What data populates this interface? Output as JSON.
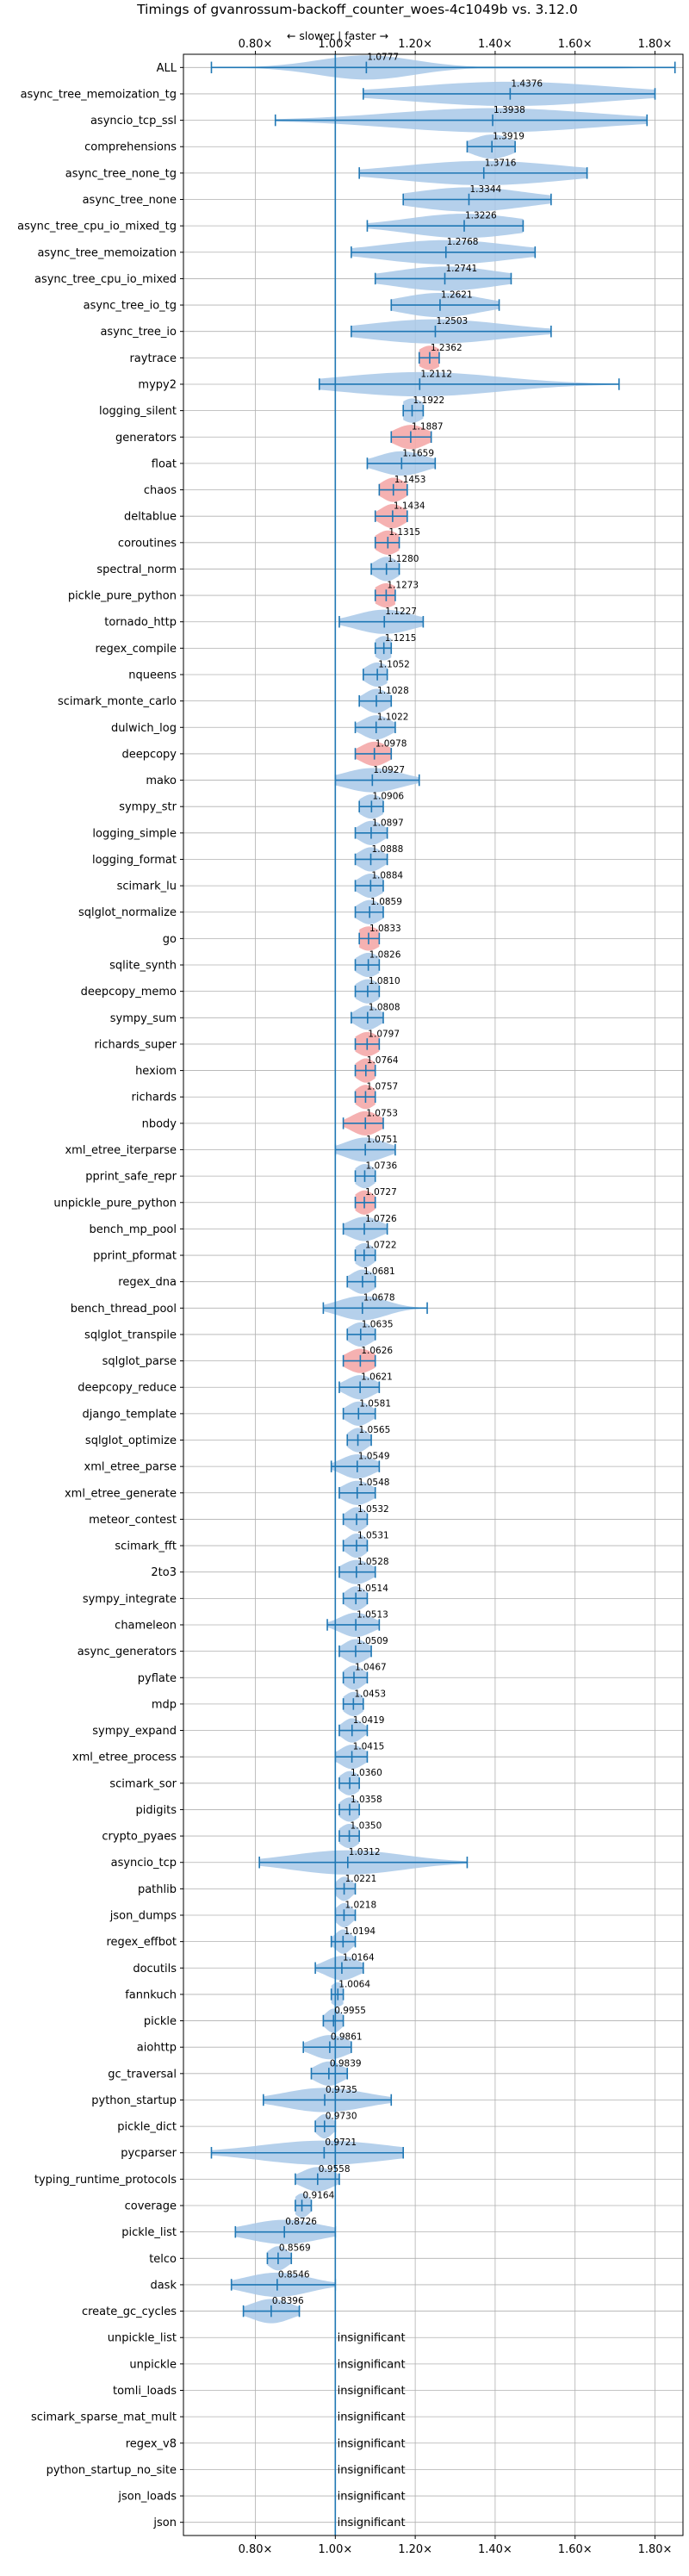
{
  "chart_data": {
    "type": "violin",
    "title": "Timings of gvanrossum-backoff_counter_woes-4c1049b vs. 3.12.0",
    "direction_label": "← slower | faster →",
    "xlim": [
      0.62,
      1.87
    ],
    "xticks": [
      0.8,
      1.0,
      1.2,
      1.4,
      1.6,
      1.8
    ],
    "xtick_labels": [
      "0.80×",
      "1.00×",
      "1.20×",
      "1.40×",
      "1.60×",
      "1.80×"
    ],
    "insignificant_label": "insignificant",
    "colors": {
      "violin": "#a8c8e8",
      "highlight": "#f4a8a8",
      "line": "#1f77b4",
      "grid": "#b0b0b0"
    },
    "series": [
      {
        "name": "ALL",
        "label": "1.0777",
        "value": 1.0777,
        "min": 0.69,
        "max": 1.85,
        "spread": 0.12,
        "highlight": false
      },
      {
        "name": "async_tree_memoization_tg",
        "label": "1.4376",
        "value": 1.4376,
        "min": 1.07,
        "max": 1.8,
        "spread": 0.25,
        "highlight": false
      },
      {
        "name": "asyncio_tcp_ssl",
        "label": "1.3938",
        "value": 1.3938,
        "min": 0.85,
        "max": 1.78,
        "spread": 0.25,
        "highlight": false
      },
      {
        "name": "comprehensions",
        "label": "1.3919",
        "value": 1.3919,
        "min": 1.33,
        "max": 1.45,
        "spread": 0.05,
        "highlight": false
      },
      {
        "name": "async_tree_none_tg",
        "label": "1.3716",
        "value": 1.3716,
        "min": 1.06,
        "max": 1.63,
        "spread": 0.2,
        "highlight": false
      },
      {
        "name": "async_tree_none",
        "label": "1.3344",
        "value": 1.3344,
        "min": 1.17,
        "max": 1.54,
        "spread": 0.14,
        "highlight": false
      },
      {
        "name": "async_tree_cpu_io_mixed_tg",
        "label": "1.3226",
        "value": 1.3226,
        "min": 1.08,
        "max": 1.47,
        "spread": 0.14,
        "highlight": false
      },
      {
        "name": "async_tree_memoization",
        "label": "1.2768",
        "value": 1.2768,
        "min": 1.04,
        "max": 1.5,
        "spread": 0.16,
        "highlight": false
      },
      {
        "name": "async_tree_cpu_io_mixed",
        "label": "1.2741",
        "value": 1.2741,
        "min": 1.1,
        "max": 1.44,
        "spread": 0.13,
        "highlight": false
      },
      {
        "name": "async_tree_io_tg",
        "label": "1.2621",
        "value": 1.2621,
        "min": 1.14,
        "max": 1.41,
        "spread": 0.1,
        "highlight": false
      },
      {
        "name": "async_tree_io",
        "label": "1.2503",
        "value": 1.2503,
        "min": 1.04,
        "max": 1.54,
        "spread": 0.17,
        "highlight": false
      },
      {
        "name": "raytrace",
        "label": "1.2362",
        "value": 1.2362,
        "min": 1.21,
        "max": 1.26,
        "spread": 0.03,
        "highlight": true
      },
      {
        "name": "mypy2",
        "label": "1.2112",
        "value": 1.2112,
        "min": 0.96,
        "max": 1.71,
        "spread": 0.2,
        "highlight": false
      },
      {
        "name": "logging_silent",
        "label": "1.1922",
        "value": 1.1922,
        "min": 1.17,
        "max": 1.22,
        "spread": 0.03,
        "highlight": false
      },
      {
        "name": "generators",
        "label": "1.1887",
        "value": 1.1887,
        "min": 1.14,
        "max": 1.24,
        "spread": 0.04,
        "highlight": true
      },
      {
        "name": "float",
        "label": "1.1659",
        "value": 1.1659,
        "min": 1.08,
        "max": 1.25,
        "spread": 0.06,
        "highlight": false
      },
      {
        "name": "chaos",
        "label": "1.1453",
        "value": 1.1453,
        "min": 1.11,
        "max": 1.18,
        "spread": 0.03,
        "highlight": true
      },
      {
        "name": "deltablue",
        "label": "1.1434",
        "value": 1.1434,
        "min": 1.1,
        "max": 1.18,
        "spread": 0.03,
        "highlight": true
      },
      {
        "name": "coroutines",
        "label": "1.1315",
        "value": 1.1315,
        "min": 1.1,
        "max": 1.16,
        "spread": 0.03,
        "highlight": true
      },
      {
        "name": "spectral_norm",
        "label": "1.1280",
        "value": 1.128,
        "min": 1.09,
        "max": 1.16,
        "spread": 0.03,
        "highlight": false
      },
      {
        "name": "pickle_pure_python",
        "label": "1.1273",
        "value": 1.1273,
        "min": 1.1,
        "max": 1.15,
        "spread": 0.03,
        "highlight": true
      },
      {
        "name": "tornado_http",
        "label": "1.1227",
        "value": 1.1227,
        "min": 1.01,
        "max": 1.22,
        "spread": 0.07,
        "highlight": false
      },
      {
        "name": "regex_compile",
        "label": "1.1215",
        "value": 1.1215,
        "min": 1.1,
        "max": 1.14,
        "spread": 0.025,
        "highlight": false
      },
      {
        "name": "nqueens",
        "label": "1.1052",
        "value": 1.1052,
        "min": 1.07,
        "max": 1.13,
        "spread": 0.03,
        "highlight": false
      },
      {
        "name": "scimark_monte_carlo",
        "label": "1.1028",
        "value": 1.1028,
        "min": 1.06,
        "max": 1.14,
        "spread": 0.03,
        "highlight": false
      },
      {
        "name": "dulwich_log",
        "label": "1.1022",
        "value": 1.1022,
        "min": 1.05,
        "max": 1.15,
        "spread": 0.035,
        "highlight": false
      },
      {
        "name": "deepcopy",
        "label": "1.0978",
        "value": 1.0978,
        "min": 1.05,
        "max": 1.14,
        "spread": 0.035,
        "highlight": true
      },
      {
        "name": "mako",
        "label": "1.0927",
        "value": 1.0927,
        "min": 1.0,
        "max": 1.21,
        "spread": 0.07,
        "highlight": false
      },
      {
        "name": "sympy_str",
        "label": "1.0906",
        "value": 1.0906,
        "min": 1.06,
        "max": 1.12,
        "spread": 0.03,
        "highlight": false
      },
      {
        "name": "logging_simple",
        "label": "1.0897",
        "value": 1.0897,
        "min": 1.05,
        "max": 1.13,
        "spread": 0.03,
        "highlight": false
      },
      {
        "name": "logging_format",
        "label": "1.0888",
        "value": 1.0888,
        "min": 1.05,
        "max": 1.13,
        "spread": 0.03,
        "highlight": false
      },
      {
        "name": "scimark_lu",
        "label": "1.0884",
        "value": 1.0884,
        "min": 1.05,
        "max": 1.12,
        "spread": 0.03,
        "highlight": false
      },
      {
        "name": "sqlglot_normalize",
        "label": "1.0859",
        "value": 1.0859,
        "min": 1.05,
        "max": 1.12,
        "spread": 0.03,
        "highlight": false
      },
      {
        "name": "go",
        "label": "1.0833",
        "value": 1.0833,
        "min": 1.06,
        "max": 1.11,
        "spread": 0.03,
        "highlight": true
      },
      {
        "name": "sqlite_synth",
        "label": "1.0826",
        "value": 1.0826,
        "min": 1.05,
        "max": 1.11,
        "spread": 0.03,
        "highlight": false
      },
      {
        "name": "deepcopy_memo",
        "label": "1.0810",
        "value": 1.081,
        "min": 1.05,
        "max": 1.11,
        "spread": 0.03,
        "highlight": false
      },
      {
        "name": "sympy_sum",
        "label": "1.0808",
        "value": 1.0808,
        "min": 1.04,
        "max": 1.12,
        "spread": 0.03,
        "highlight": false
      },
      {
        "name": "richards_super",
        "label": "1.0797",
        "value": 1.0797,
        "min": 1.05,
        "max": 1.11,
        "spread": 0.03,
        "highlight": true
      },
      {
        "name": "hexiom",
        "label": "1.0764",
        "value": 1.0764,
        "min": 1.05,
        "max": 1.1,
        "spread": 0.025,
        "highlight": true
      },
      {
        "name": "richards",
        "label": "1.0757",
        "value": 1.0757,
        "min": 1.05,
        "max": 1.1,
        "spread": 0.025,
        "highlight": true
      },
      {
        "name": "nbody",
        "label": "1.0753",
        "value": 1.0753,
        "min": 1.02,
        "max": 1.12,
        "spread": 0.035,
        "highlight": true
      },
      {
        "name": "xml_etree_iterparse",
        "label": "1.0751",
        "value": 1.0751,
        "min": 1.0,
        "max": 1.15,
        "spread": 0.05,
        "highlight": false
      },
      {
        "name": "pprint_safe_repr",
        "label": "1.0736",
        "value": 1.0736,
        "min": 1.05,
        "max": 1.1,
        "spread": 0.025,
        "highlight": false
      },
      {
        "name": "unpickle_pure_python",
        "label": "1.0727",
        "value": 1.0727,
        "min": 1.05,
        "max": 1.1,
        "spread": 0.025,
        "highlight": true
      },
      {
        "name": "bench_mp_pool",
        "label": "1.0726",
        "value": 1.0726,
        "min": 1.02,
        "max": 1.13,
        "spread": 0.04,
        "highlight": false
      },
      {
        "name": "pprint_pformat",
        "label": "1.0722",
        "value": 1.0722,
        "min": 1.05,
        "max": 1.1,
        "spread": 0.025,
        "highlight": false
      },
      {
        "name": "regex_dna",
        "label": "1.0681",
        "value": 1.0681,
        "min": 1.03,
        "max": 1.1,
        "spread": 0.03,
        "highlight": false
      },
      {
        "name": "bench_thread_pool",
        "label": "1.0678",
        "value": 1.0678,
        "min": 0.97,
        "max": 1.23,
        "spread": 0.06,
        "highlight": false
      },
      {
        "name": "sqlglot_transpile",
        "label": "1.0635",
        "value": 1.0635,
        "min": 1.03,
        "max": 1.1,
        "spread": 0.03,
        "highlight": false
      },
      {
        "name": "sqlglot_parse",
        "label": "1.0626",
        "value": 1.0626,
        "min": 1.02,
        "max": 1.1,
        "spread": 0.035,
        "highlight": true
      },
      {
        "name": "deepcopy_reduce",
        "label": "1.0621",
        "value": 1.0621,
        "min": 1.01,
        "max": 1.11,
        "spread": 0.035,
        "highlight": false
      },
      {
        "name": "django_template",
        "label": "1.0581",
        "value": 1.0581,
        "min": 1.02,
        "max": 1.1,
        "spread": 0.03,
        "highlight": false
      },
      {
        "name": "sqlglot_optimize",
        "label": "1.0565",
        "value": 1.0565,
        "min": 1.03,
        "max": 1.09,
        "spread": 0.025,
        "highlight": false
      },
      {
        "name": "xml_etree_parse",
        "label": "1.0549",
        "value": 1.0549,
        "min": 0.99,
        "max": 1.11,
        "spread": 0.04,
        "highlight": false
      },
      {
        "name": "xml_etree_generate",
        "label": "1.0548",
        "value": 1.0548,
        "min": 1.01,
        "max": 1.1,
        "spread": 0.035,
        "highlight": false
      },
      {
        "name": "meteor_contest",
        "label": "1.0532",
        "value": 1.0532,
        "min": 1.02,
        "max": 1.08,
        "spread": 0.025,
        "highlight": false
      },
      {
        "name": "scimark_fft",
        "label": "1.0531",
        "value": 1.0531,
        "min": 1.02,
        "max": 1.08,
        "spread": 0.025,
        "highlight": false
      },
      {
        "name": "2to3",
        "label": "1.0528",
        "value": 1.0528,
        "min": 1.01,
        "max": 1.1,
        "spread": 0.035,
        "highlight": false
      },
      {
        "name": "sympy_integrate",
        "label": "1.0514",
        "value": 1.0514,
        "min": 1.02,
        "max": 1.08,
        "spread": 0.025,
        "highlight": false
      },
      {
        "name": "chameleon",
        "label": "1.0513",
        "value": 1.0513,
        "min": 0.98,
        "max": 1.11,
        "spread": 0.04,
        "highlight": false
      },
      {
        "name": "async_generators",
        "label": "1.0509",
        "value": 1.0509,
        "min": 1.01,
        "max": 1.09,
        "spread": 0.03,
        "highlight": false
      },
      {
        "name": "pyflate",
        "label": "1.0467",
        "value": 1.0467,
        "min": 1.02,
        "max": 1.08,
        "spread": 0.025,
        "highlight": false
      },
      {
        "name": "mdp",
        "label": "1.0453",
        "value": 1.0453,
        "min": 1.02,
        "max": 1.07,
        "spread": 0.025,
        "highlight": false
      },
      {
        "name": "sympy_expand",
        "label": "1.0419",
        "value": 1.0419,
        "min": 1.01,
        "max": 1.08,
        "spread": 0.025,
        "highlight": false
      },
      {
        "name": "xml_etree_process",
        "label": "1.0415",
        "value": 1.0415,
        "min": 1.0,
        "max": 1.08,
        "spread": 0.03,
        "highlight": false
      },
      {
        "name": "scimark_sor",
        "label": "1.0360",
        "value": 1.036,
        "min": 1.01,
        "max": 1.06,
        "spread": 0.025,
        "highlight": false
      },
      {
        "name": "pidigits",
        "label": "1.0358",
        "value": 1.0358,
        "min": 1.01,
        "max": 1.06,
        "spread": 0.025,
        "highlight": false
      },
      {
        "name": "crypto_pyaes",
        "label": "1.0350",
        "value": 1.035,
        "min": 1.01,
        "max": 1.06,
        "spread": 0.025,
        "highlight": false
      },
      {
        "name": "asyncio_tcp",
        "label": "1.0312",
        "value": 1.0312,
        "min": 0.81,
        "max": 1.33,
        "spread": 0.14,
        "highlight": false
      },
      {
        "name": "pathlib",
        "label": "1.0221",
        "value": 1.0221,
        "min": 1.0,
        "max": 1.05,
        "spread": 0.02,
        "highlight": false
      },
      {
        "name": "json_dumps",
        "label": "1.0218",
        "value": 1.0218,
        "min": 1.0,
        "max": 1.05,
        "spread": 0.02,
        "highlight": false
      },
      {
        "name": "regex_effbot",
        "label": "1.0194",
        "value": 1.0194,
        "min": 0.99,
        "max": 1.05,
        "spread": 0.02,
        "highlight": false
      },
      {
        "name": "docutils",
        "label": "1.0164",
        "value": 1.0164,
        "min": 0.95,
        "max": 1.07,
        "spread": 0.04,
        "highlight": false
      },
      {
        "name": "fannkuch",
        "label": "1.0064",
        "value": 1.0064,
        "min": 0.99,
        "max": 1.02,
        "spread": 0.02,
        "highlight": false
      },
      {
        "name": "pickle",
        "label": "0.9955",
        "value": 0.9955,
        "min": 0.97,
        "max": 1.02,
        "spread": 0.02,
        "highlight": false
      },
      {
        "name": "aiohttp",
        "label": "0.9861",
        "value": 0.9861,
        "min": 0.92,
        "max": 1.04,
        "spread": 0.045,
        "highlight": false
      },
      {
        "name": "gc_traversal",
        "label": "0.9839",
        "value": 0.9839,
        "min": 0.94,
        "max": 1.03,
        "spread": 0.035,
        "highlight": false
      },
      {
        "name": "python_startup",
        "label": "0.9735",
        "value": 0.9735,
        "min": 0.82,
        "max": 1.14,
        "spread": 0.1,
        "highlight": false
      },
      {
        "name": "pickle_dict",
        "label": "0.9730",
        "value": 0.973,
        "min": 0.95,
        "max": 1.0,
        "spread": 0.02,
        "highlight": false
      },
      {
        "name": "pycparser",
        "label": "0.9721",
        "value": 0.9721,
        "min": 0.69,
        "max": 1.17,
        "spread": 0.16,
        "highlight": false
      },
      {
        "name": "typing_runtime_protocols",
        "label": "0.9558",
        "value": 0.9558,
        "min": 0.9,
        "max": 1.01,
        "spread": 0.04,
        "highlight": false
      },
      {
        "name": "coverage",
        "label": "0.9164",
        "value": 0.9164,
        "min": 0.9,
        "max": 0.94,
        "spread": 0.02,
        "highlight": false
      },
      {
        "name": "pickle_list",
        "label": "0.8726",
        "value": 0.8726,
        "min": 0.75,
        "max": 1.0,
        "spread": 0.09,
        "highlight": false
      },
      {
        "name": "telco",
        "label": "0.8569",
        "value": 0.8569,
        "min": 0.83,
        "max": 0.89,
        "spread": 0.025,
        "highlight": false
      },
      {
        "name": "dask",
        "label": "0.8546",
        "value": 0.8546,
        "min": 0.74,
        "max": 1.0,
        "spread": 0.08,
        "highlight": false
      },
      {
        "name": "create_gc_cycles",
        "label": "0.8396",
        "value": 0.8396,
        "min": 0.77,
        "max": 0.91,
        "spread": 0.05,
        "highlight": false
      },
      {
        "name": "unpickle_list",
        "label": "",
        "value": null,
        "insignificant": true
      },
      {
        "name": "unpickle",
        "label": "",
        "value": null,
        "insignificant": true
      },
      {
        "name": "tomli_loads",
        "label": "",
        "value": null,
        "insignificant": true
      },
      {
        "name": "scimark_sparse_mat_mult",
        "label": "",
        "value": null,
        "insignificant": true
      },
      {
        "name": "regex_v8",
        "label": "",
        "value": null,
        "insignificant": true
      },
      {
        "name": "python_startup_no_site",
        "label": "",
        "value": null,
        "insignificant": true
      },
      {
        "name": "json_loads",
        "label": "",
        "value": null,
        "insignificant": true
      },
      {
        "name": "json",
        "label": "",
        "value": null,
        "insignificant": true
      }
    ]
  }
}
